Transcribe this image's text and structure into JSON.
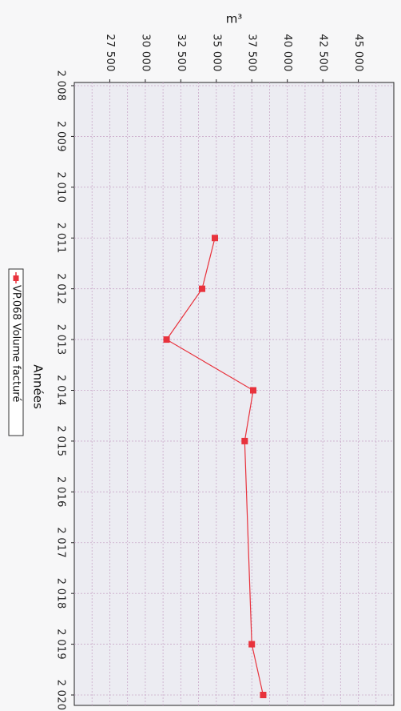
{
  "chart_data": {
    "type": "line",
    "orientation": "rotated-90-clockwise",
    "xlabel": "Années",
    "ylabel": "m³",
    "x": [
      2008,
      2009,
      2010,
      2011,
      2012,
      2013,
      2014,
      2015,
      2016,
      2017,
      2018,
      2019,
      2020
    ],
    "x_tick_labels": [
      "2 008",
      "2 009",
      "2 010",
      "2 011",
      "2 012",
      "2 013",
      "2 014",
      "2 015",
      "2 016",
      "2 017",
      "2 018",
      "2 019",
      "2 020"
    ],
    "ylim": [
      25000,
      47500
    ],
    "y_ticks": [
      27500,
      30000,
      32500,
      35000,
      37500,
      40000,
      42500,
      45000
    ],
    "y_tick_labels": [
      "27 500",
      "30 000",
      "32 500",
      "35 000",
      "37 500",
      "40 000",
      "42 500",
      "45 000"
    ],
    "grid": true,
    "legend_position": "bottom",
    "series": [
      {
        "name": "VP.068 Volume facturé",
        "color": "#e8323c",
        "points": [
          {
            "x": 2011,
            "y": 34900
          },
          {
            "x": 2012,
            "y": 34000
          },
          {
            "x": 2013,
            "y": 31500
          },
          {
            "x": 2014,
            "y": 37600
          },
          {
            "x": 2015,
            "y": 37000
          },
          {
            "x": 2019,
            "y": 37500
          },
          {
            "x": 2020,
            "y": 38300
          }
        ]
      }
    ]
  }
}
